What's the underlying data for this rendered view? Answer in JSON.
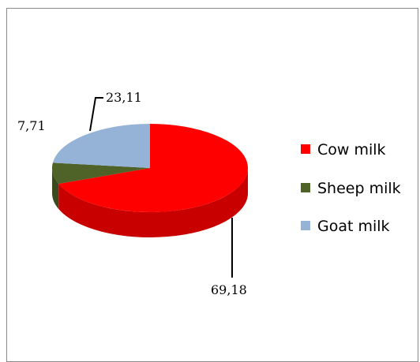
{
  "chart_data": {
    "type": "pie",
    "three_d": true,
    "legend_position": "right",
    "series": [
      {
        "name": "Cow milk",
        "value": 69.18,
        "label": "69,18",
        "color": "#ff0000",
        "side_color": "#c80000"
      },
      {
        "name": "Sheep milk",
        "value": 7.71,
        "label": "7,71",
        "color": "#4f6228",
        "side_color": "#3b4a1e"
      },
      {
        "name": "Goat milk",
        "value": 23.11,
        "label": "23,11",
        "color": "#95b3d7",
        "side_color": "#7090b8"
      }
    ]
  }
}
